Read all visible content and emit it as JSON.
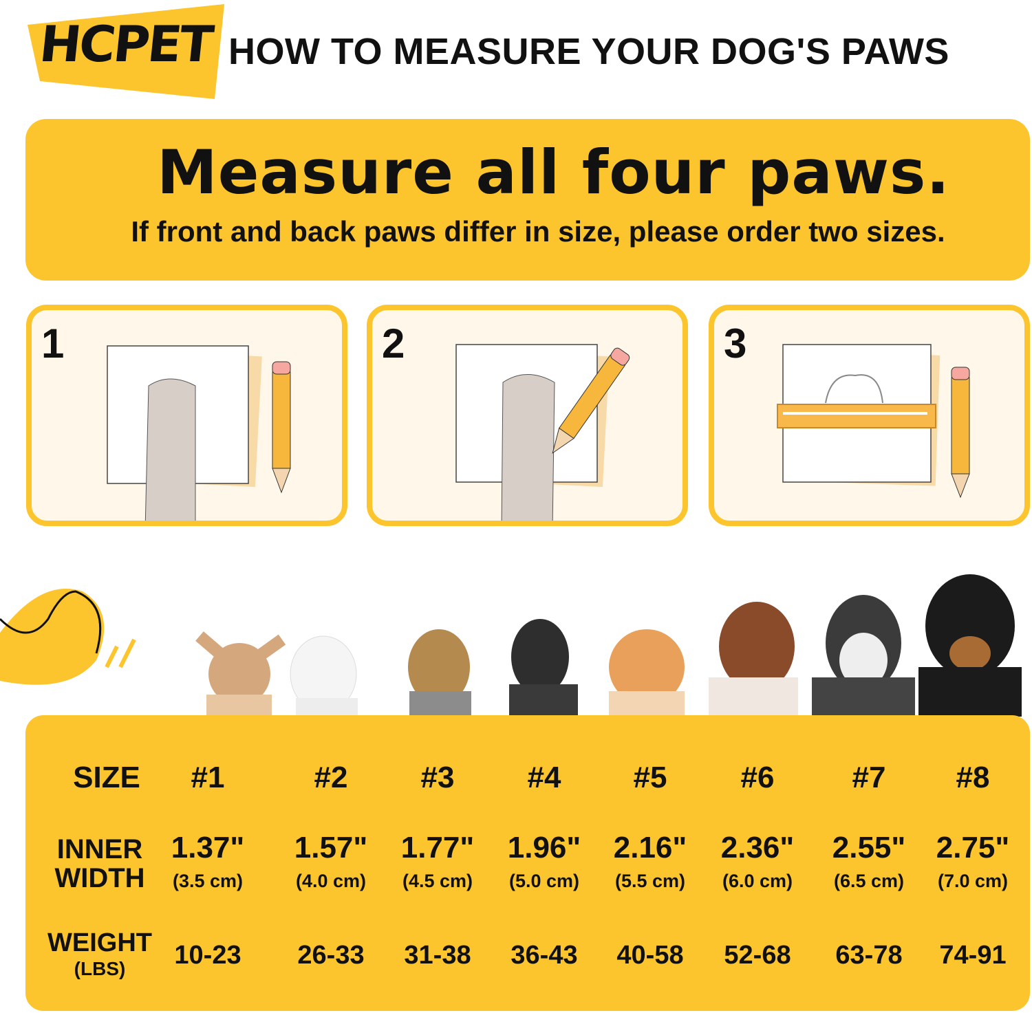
{
  "brand": {
    "logo": "HCPET",
    "accent": "#FCC52E"
  },
  "header": {
    "title": "HOW TO MEASURE YOUR DOG'S PAWS"
  },
  "banner": {
    "headline": "Measure all four paws.",
    "subtitle": "If front and back paws differ in size, please order two sizes."
  },
  "steps": [
    {
      "number": "1"
    },
    {
      "number": "2"
    },
    {
      "number": "3"
    }
  ],
  "size_chart": {
    "row_labels": {
      "size": "SIZE",
      "width_line1": "INNER",
      "width_line2": "WIDTH",
      "weight": "WEIGHT",
      "weight_unit": "(LBS)"
    },
    "columns": [
      {
        "size": "#1",
        "inch": "1.37\"",
        "cm": "(3.5 cm)",
        "weight": "10-23"
      },
      {
        "size": "#2",
        "inch": "1.57\"",
        "cm": "(4.0 cm)",
        "weight": "26-33"
      },
      {
        "size": "#3",
        "inch": "1.77\"",
        "cm": "(4.5 cm)",
        "weight": "31-38"
      },
      {
        "size": "#4",
        "inch": "1.96\"",
        "cm": "(5.0 cm)",
        "weight": "36-43"
      },
      {
        "size": "#5",
        "inch": "2.16\"",
        "cm": "(5.5 cm)",
        "weight": "40-58"
      },
      {
        "size": "#6",
        "inch": "2.36\"",
        "cm": "(6.0 cm)",
        "weight": "52-68"
      },
      {
        "size": "#7",
        "inch": "2.55\"",
        "cm": "(6.5 cm)",
        "weight": "63-78"
      },
      {
        "size": "#8",
        "inch": "2.75\"",
        "cm": "(7.0 cm)",
        "weight": "74-91"
      }
    ]
  }
}
